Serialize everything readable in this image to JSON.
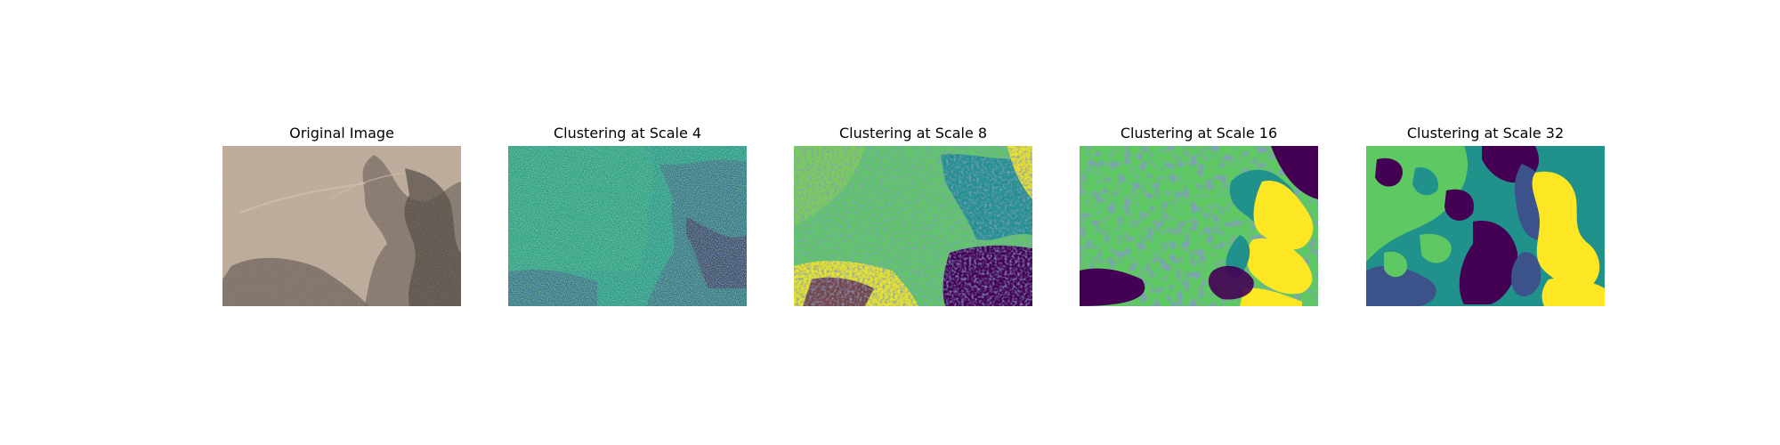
{
  "panels": [
    {
      "title": "Original Image"
    },
    {
      "title": "Clustering at Scale 4"
    },
    {
      "title": "Clustering at Scale 8"
    },
    {
      "title": "Clustering at Scale 16"
    },
    {
      "title": "Clustering at Scale 32"
    }
  ],
  "palette": {
    "c0": "#440154",
    "c1": "#3b528b",
    "c2": "#21918c",
    "c3": "#5ec962",
    "c4": "#fde725",
    "photo_ground": "#b8a794",
    "photo_shadow": "#5b5149",
    "photo_dark": "#2f2b28"
  }
}
